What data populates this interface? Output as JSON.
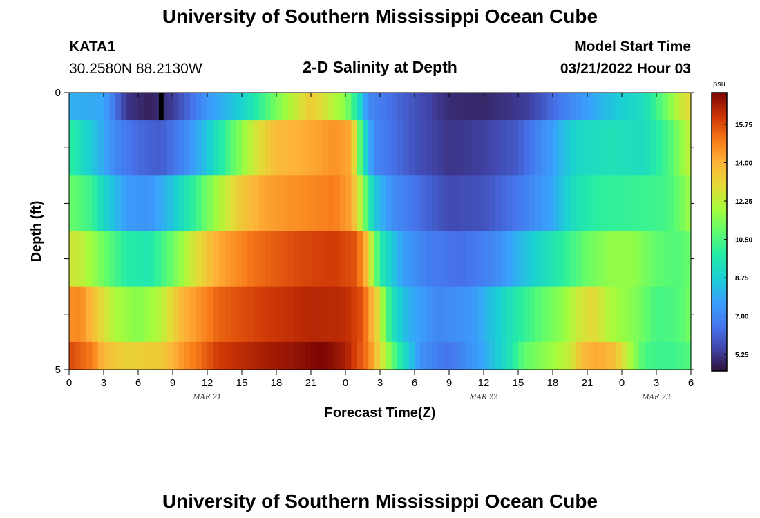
{
  "header": {
    "title": "University of Southern Mississippi Ocean Cube",
    "station": "KATA1",
    "coords": "30.2580N  88.2130W",
    "subtitle": "2-D Salinity at Depth",
    "model_label": "Model Start Time",
    "model_time": "03/21/2022 Hour 03"
  },
  "footer": {
    "title": "University of Southern Mississippi Ocean Cube"
  },
  "chart_data": {
    "type": "heatmap",
    "title": "2-D Salinity at Depth",
    "xlabel": "Forecast Time(Z)",
    "ylabel": "Depth (ft)",
    "x_range_hours": [
      0,
      54
    ],
    "y_range": [
      0,
      5
    ],
    "x_tick_labels": [
      "0",
      "3",
      "6",
      "9",
      "12",
      "15",
      "18",
      "21",
      "0",
      "3",
      "6",
      "9",
      "12",
      "15",
      "18",
      "21",
      "0",
      "3",
      "6"
    ],
    "y_tick_labels": [
      "0",
      "5"
    ],
    "date_labels": [
      {
        "label": "MAR 21",
        "hour": 12
      },
      {
        "label": "MAR 22",
        "hour": 36
      },
      {
        "label": "MAR 23",
        "hour": 51
      }
    ],
    "colorbar": {
      "unit": "psu",
      "min": 4.5,
      "max": 17.2,
      "ticks": [
        "5.25",
        "7.00",
        "8.75",
        "10.50",
        "12.25",
        "14.00",
        "15.75"
      ]
    },
    "layers": [
      {
        "depth_band": "0-0.5 ft",
        "keys": [
          [
            0,
            8.0
          ],
          [
            3,
            7.8
          ],
          [
            5,
            5.2
          ],
          [
            7,
            4.8
          ],
          [
            9,
            5.3
          ],
          [
            12,
            7.4
          ],
          [
            15,
            8.8
          ],
          [
            18,
            11.2
          ],
          [
            21,
            13.4
          ],
          [
            24,
            11.5
          ],
          [
            25,
            9.6
          ],
          [
            26,
            7.0
          ],
          [
            30,
            5.8
          ],
          [
            33,
            5.0
          ],
          [
            36,
            4.9
          ],
          [
            40,
            5.4
          ],
          [
            43,
            6.8
          ],
          [
            47,
            8.4
          ],
          [
            50,
            9.3
          ],
          [
            52,
            11.2
          ],
          [
            53,
            12.4
          ],
          [
            54,
            13.0
          ]
        ]
      },
      {
        "depth_band": "0.5-1.5 ft",
        "keys": [
          [
            0,
            10.0
          ],
          [
            2,
            8.6
          ],
          [
            4,
            7.0
          ],
          [
            6,
            6.3
          ],
          [
            8,
            6.0
          ],
          [
            10,
            7.0
          ],
          [
            12,
            8.5
          ],
          [
            14,
            10.6
          ],
          [
            16,
            12.5
          ],
          [
            18,
            13.8
          ],
          [
            21,
            14.2
          ],
          [
            23,
            14.6
          ],
          [
            24.5,
            14.2
          ],
          [
            25.5,
            9.6
          ],
          [
            26.5,
            7.0
          ],
          [
            30,
            5.8
          ],
          [
            33,
            5.2
          ],
          [
            36,
            5.4
          ],
          [
            39,
            6.0
          ],
          [
            42,
            7.6
          ],
          [
            44,
            9.0
          ],
          [
            47,
            9.4
          ],
          [
            50,
            9.2
          ],
          [
            52,
            10.4
          ],
          [
            53,
            11.4
          ],
          [
            54,
            12.4
          ]
        ]
      },
      {
        "depth_band": "1.5-2.5 ft",
        "keys": [
          [
            0,
            11.0
          ],
          [
            2,
            10.2
          ],
          [
            3,
            9.0
          ],
          [
            5,
            7.5
          ],
          [
            7,
            7.3
          ],
          [
            9,
            8.5
          ],
          [
            11,
            10.2
          ],
          [
            13,
            12.0
          ],
          [
            15,
            13.5
          ],
          [
            17,
            14.3
          ],
          [
            21,
            14.8
          ],
          [
            23,
            15.0
          ],
          [
            24.5,
            14.3
          ],
          [
            25.5,
            11.6
          ],
          [
            26.5,
            8.6
          ],
          [
            28,
            7.2
          ],
          [
            31,
            6.2
          ],
          [
            33,
            5.6
          ],
          [
            36,
            5.8
          ],
          [
            39,
            6.6
          ],
          [
            42,
            7.8
          ],
          [
            44,
            9.4
          ],
          [
            46,
            10.0
          ],
          [
            50,
            10.2
          ],
          [
            52,
            10.4
          ],
          [
            53,
            11.0
          ],
          [
            54,
            11.8
          ]
        ]
      },
      {
        "depth_band": "2.5-3.5 ft",
        "keys": [
          [
            0,
            12.6
          ],
          [
            1,
            12.4
          ],
          [
            3,
            11.0
          ],
          [
            5,
            9.8
          ],
          [
            7,
            9.6
          ],
          [
            9,
            11.0
          ],
          [
            11,
            12.8
          ],
          [
            13,
            14.2
          ],
          [
            16,
            15.2
          ],
          [
            20,
            15.8
          ],
          [
            23,
            16.0
          ],
          [
            25,
            15.6
          ],
          [
            25.8,
            13.8
          ],
          [
            27,
            9.8
          ],
          [
            29,
            7.6
          ],
          [
            31,
            6.8
          ],
          [
            34,
            6.4
          ],
          [
            37,
            7.0
          ],
          [
            40,
            8.6
          ],
          [
            43,
            10.0
          ],
          [
            45,
            11.0
          ],
          [
            47,
            11.6
          ],
          [
            49,
            11.6
          ],
          [
            51,
            10.8
          ],
          [
            53,
            10.6
          ],
          [
            54,
            11.0
          ]
        ]
      },
      {
        "depth_band": "3.5-4.5 ft",
        "keys": [
          [
            0,
            14.6
          ],
          [
            1,
            14.8
          ],
          [
            3,
            12.8
          ],
          [
            4,
            12.0
          ],
          [
            6,
            11.4
          ],
          [
            8,
            12.2
          ],
          [
            10,
            14.0
          ],
          [
            13,
            15.4
          ],
          [
            17,
            16.0
          ],
          [
            21,
            16.4
          ],
          [
            24,
            16.3
          ],
          [
            25.5,
            15.6
          ],
          [
            26.8,
            13.0
          ],
          [
            28,
            9.5
          ],
          [
            29.5,
            8.0
          ],
          [
            32,
            7.0
          ],
          [
            35,
            7.4
          ],
          [
            37,
            8.6
          ],
          [
            39,
            9.8
          ],
          [
            41,
            10.8
          ],
          [
            43,
            11.6
          ],
          [
            44,
            12.4
          ],
          [
            45.5,
            13.0
          ],
          [
            47,
            12.0
          ],
          [
            49,
            11.4
          ],
          [
            51,
            10.4
          ],
          [
            53,
            10.6
          ],
          [
            54,
            11.2
          ]
        ]
      },
      {
        "depth_band": "4.5-5 ft",
        "keys": [
          [
            0,
            15.8
          ],
          [
            2,
            15.0
          ],
          [
            3,
            13.8
          ],
          [
            5,
            13.2
          ],
          [
            8,
            13.4
          ],
          [
            10,
            14.6
          ],
          [
            13,
            16.0
          ],
          [
            17,
            16.6
          ],
          [
            20,
            16.9
          ],
          [
            22,
            17.2
          ],
          [
            24,
            16.6
          ],
          [
            26,
            15.0
          ],
          [
            27,
            13.0
          ],
          [
            28,
            11.0
          ],
          [
            29,
            9.4
          ],
          [
            30.5,
            7.2
          ],
          [
            33,
            6.5
          ],
          [
            36,
            7.8
          ],
          [
            38,
            9.2
          ],
          [
            39.5,
            10.8
          ],
          [
            42,
            11.8
          ],
          [
            43.5,
            12.4
          ],
          [
            44.5,
            13.8
          ],
          [
            46,
            14.2
          ],
          [
            47.5,
            13.6
          ],
          [
            49,
            11.6
          ],
          [
            50,
            10.4
          ],
          [
            52,
            10.2
          ],
          [
            54,
            10.6
          ]
        ]
      }
    ],
    "annotation": {
      "type": "vertical black bar",
      "hour": 8,
      "depth_band": "0-0.5 ft"
    }
  }
}
